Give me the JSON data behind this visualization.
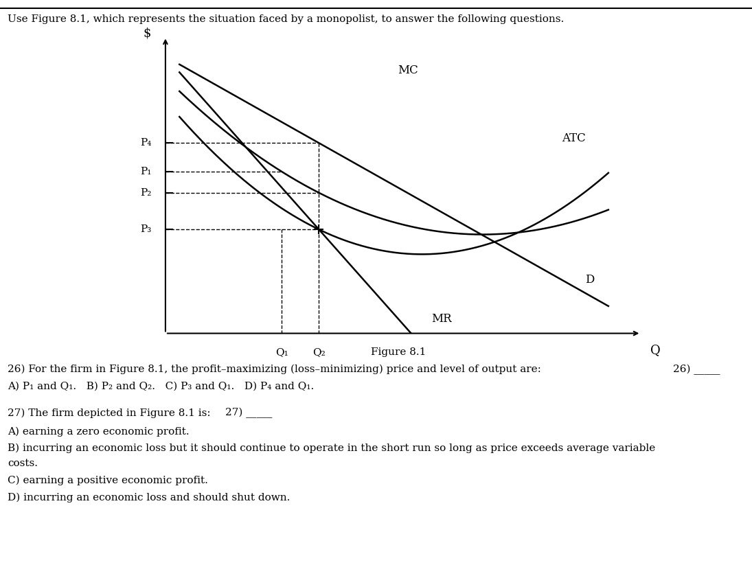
{
  "title_text": "Use Figure 8.1, which represents the situation faced by a monopolist, to answer the following questions.",
  "figure_label": "Figure 8.1",
  "bg_color": "#ffffff",
  "text_color": "#000000",
  "q26_text": "26) For the firm in Figure 8.1, the profit–maximizing (loss–minimizing) price and level of output are:",
  "q26_label": "26) _____",
  "q26_options": "A) P₁ and Q₁.   B) P₂ and Q₂.   C) P₃ and Q₁.   D) P₄ and Q₁.",
  "q27_text": "27) The firm depicted in Figure 8.1 is:",
  "q27_label": "27) _____",
  "q27_A": "A) earning a zero economic profit.",
  "q27_B": "B) incurring an economic loss but it should continue to operate in the short run so long as price exceeds average variable",
  "q27_B2": "costs.",
  "q27_C": "C) earning a positive economic profit.",
  "q27_D": "D) incurring an economic loss and should shut down."
}
